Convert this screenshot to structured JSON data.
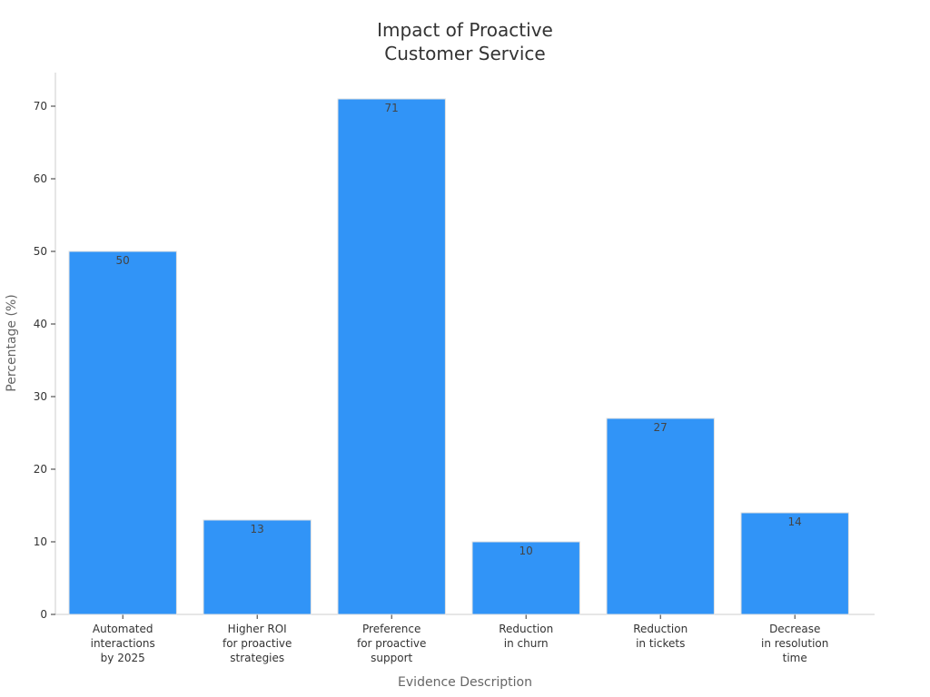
{
  "chart_data": {
    "type": "bar",
    "title": [
      "Impact of Proactive",
      "Customer Service"
    ],
    "xlabel": "Evidence Description",
    "ylabel": "Percentage (%)",
    "ylim": [
      0,
      75
    ],
    "yticks": [
      0,
      10,
      20,
      30,
      40,
      50,
      60,
      70
    ],
    "categories": [
      [
        "Automated",
        "interactions",
        "by 2025"
      ],
      [
        "Higher ROI",
        "for proactive",
        "strategies"
      ],
      [
        "Preference",
        "for proactive",
        "support"
      ],
      [
        "Reduction",
        "in churn"
      ],
      [
        "Reduction",
        "in tickets"
      ],
      [
        "Decrease",
        "in resolution",
        "time"
      ]
    ],
    "values": [
      50,
      13,
      71,
      10,
      27,
      14
    ],
    "data_labels": [
      "50",
      "13",
      "71",
      "10",
      "27",
      "14"
    ],
    "bar_color": "#3194f7",
    "grid": false,
    "legend": "none"
  }
}
